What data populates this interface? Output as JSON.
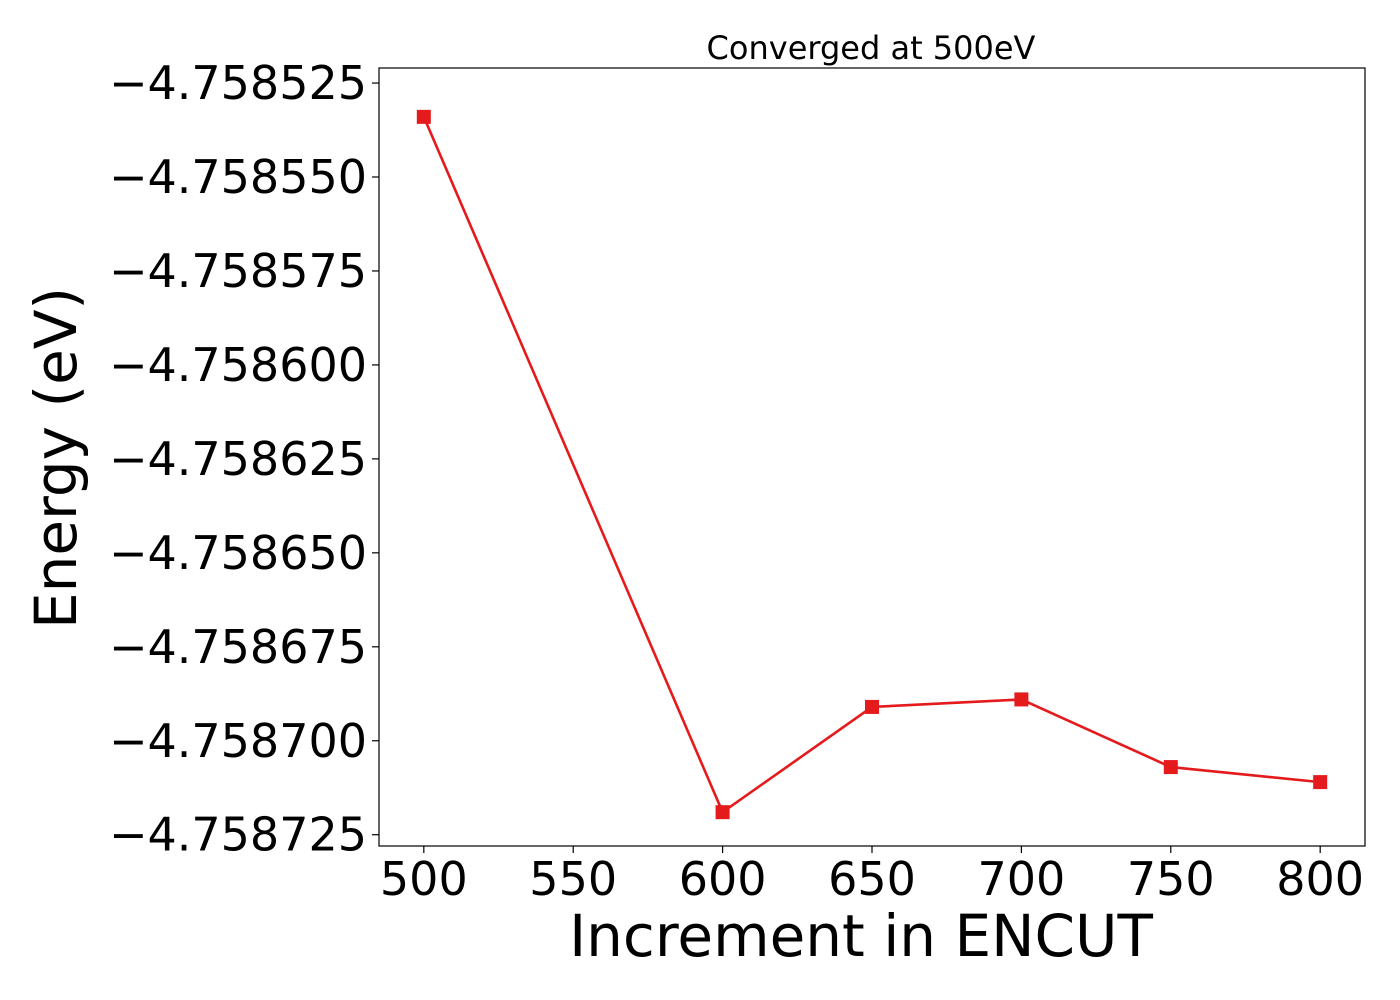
{
  "chart_data": {
    "type": "line",
    "title": "Converged at 500eV",
    "xlabel": "Increment in ENCUT",
    "ylabel": "Energy (eV)",
    "x": [
      500,
      600,
      650,
      700,
      750,
      800
    ],
    "series": [
      {
        "values": [
          -4.758534,
          -4.758719,
          -4.758691,
          -4.758689,
          -4.758707,
          -4.758711
        ],
        "color": "#e41a1c",
        "marker": "square"
      }
    ],
    "xlim": [
      485,
      815
    ],
    "ylim": [
      -4.758728,
      -4.758521
    ],
    "xticks": [
      500,
      550,
      600,
      650,
      700,
      750,
      800
    ],
    "xtick_labels": [
      "500",
      "550",
      "600",
      "650",
      "700",
      "750",
      "800"
    ],
    "yticks": [
      -4.758525,
      -4.75855,
      -4.758575,
      -4.7586,
      -4.758625,
      -4.75865,
      -4.758675,
      -4.7587,
      -4.758725
    ],
    "ytick_labels": [
      "−4.758525",
      "−4.758550",
      "−4.758575",
      "−4.758600",
      "−4.758625",
      "−4.758650",
      "−4.758675",
      "−4.758700",
      "−4.758725"
    ],
    "grid": false,
    "legend": "none"
  }
}
